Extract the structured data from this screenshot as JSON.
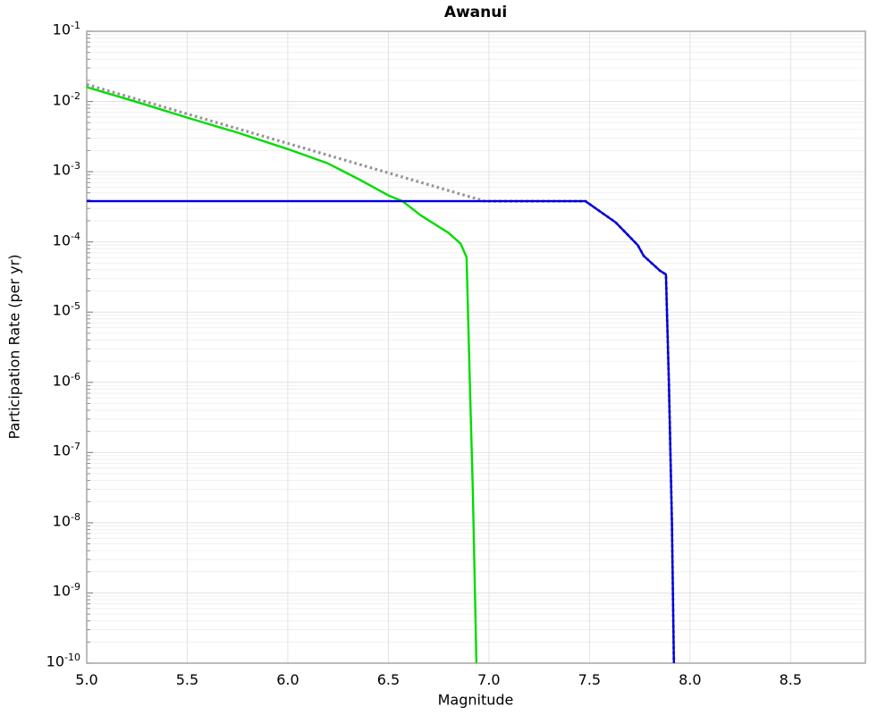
{
  "chart_data": {
    "type": "line",
    "title": "Awanui",
    "xlabel": "Magnitude",
    "ylabel": "Participation Rate (per yr)",
    "xlim": [
      5.0,
      8.872
    ],
    "ylim_exponents": [
      -1,
      -10
    ],
    "x_ticks": [
      5.0,
      5.5,
      6.0,
      6.5,
      7.0,
      7.5,
      8.0,
      8.5
    ],
    "x_tick_labels": [
      "5.0",
      "5.5",
      "6.0",
      "6.5",
      "7.0",
      "7.5",
      "8.0",
      "8.5"
    ],
    "y_tick_exponents": [
      -1,
      -2,
      -3,
      -4,
      -5,
      -6,
      -7,
      -8,
      -9,
      -10
    ],
    "grid": true,
    "legend_position": "none",
    "series": [
      {
        "name": "green-solid-curve",
        "color": "#00DC00",
        "style": "solid",
        "points": [
          [
            5.0,
            0.016
          ],
          [
            5.25,
            0.0098
          ],
          [
            5.5,
            0.0059
          ],
          [
            5.75,
            0.0036
          ],
          [
            6.0,
            0.0021
          ],
          [
            6.2,
            0.00131
          ],
          [
            6.35,
            0.00079
          ],
          [
            6.5,
            0.00046
          ],
          [
            6.57,
            0.00038
          ],
          [
            6.66,
            0.00024
          ],
          [
            6.8,
            0.000134
          ],
          [
            6.86,
            9.4e-05
          ],
          [
            6.889,
            6e-05
          ],
          [
            6.904,
            1.3e-06
          ],
          [
            6.92,
            2.8e-08
          ],
          [
            6.938,
            1e-10
          ]
        ]
      },
      {
        "name": "gray-dotted-curve",
        "color": "#949494",
        "style": "dotted",
        "points": [
          [
            5.0,
            0.0175
          ],
          [
            6.98,
            0.00038
          ],
          [
            7.48,
            0.00038
          ],
          [
            7.63,
            0.00019
          ],
          [
            7.67,
            0.000145
          ],
          [
            7.74,
            9e-05
          ],
          [
            7.77,
            6.3e-05
          ],
          [
            7.85,
            3.9e-05
          ],
          [
            7.88,
            3.45e-05
          ],
          [
            7.895,
            1e-06
          ],
          [
            7.91,
            1e-08
          ],
          [
            7.92,
            1e-10
          ]
        ]
      },
      {
        "name": "blue-solid-curve",
        "color": "#0000E0",
        "style": "solid",
        "points": [
          [
            5.0,
            0.00038
          ],
          [
            7.48,
            0.00038
          ],
          [
            7.63,
            0.00019
          ],
          [
            7.67,
            0.000145
          ],
          [
            7.74,
            9e-05
          ],
          [
            7.77,
            6.3e-05
          ],
          [
            7.85,
            3.9e-05
          ],
          [
            7.88,
            3.45e-05
          ],
          [
            7.895,
            1e-06
          ],
          [
            7.91,
            1e-08
          ],
          [
            7.92,
            1e-10
          ]
        ]
      }
    ],
    "colors": {
      "frame": "#A6A6A6",
      "grid_major": "#E2E2E2",
      "grid_minor": "#F0F0F0",
      "tick": "#8A8A8A"
    }
  }
}
